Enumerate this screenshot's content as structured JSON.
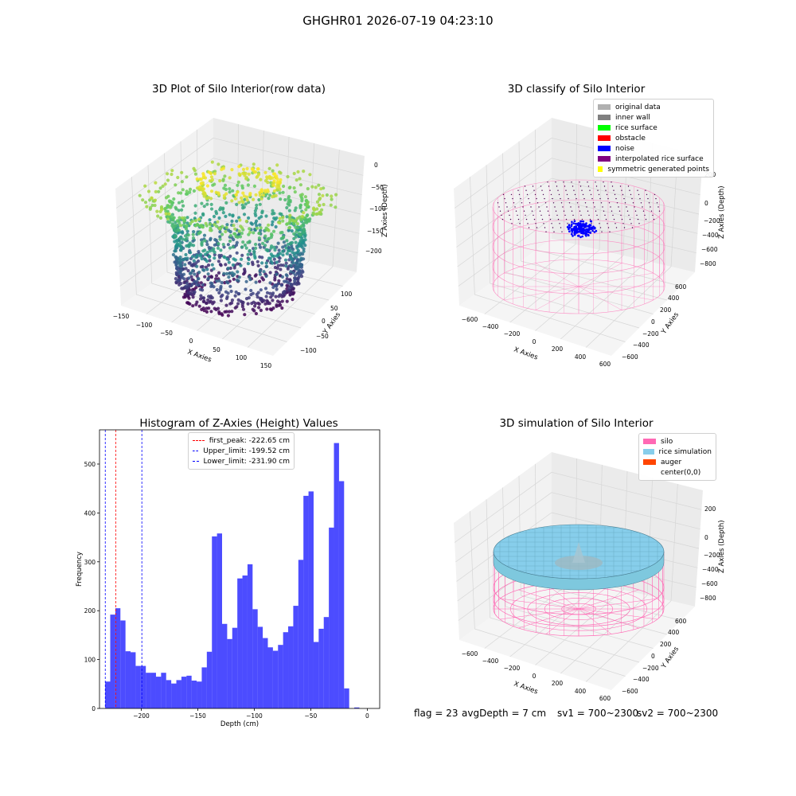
{
  "suptitle": "GHGHR01 2026-07-19 04:23:10",
  "chart_data": [
    {
      "type": "scatter",
      "title": "3D Plot of Silo Interior(row data)",
      "xlabel": "X Axies",
      "ylabel": "Y Axies",
      "zlabel": "Z Axies (Depth)",
      "x_ticks": [
        "−150",
        "−100",
        "−50",
        "0",
        "50",
        "100",
        "150"
      ],
      "y_ticks": [
        "−100",
        "−50",
        "0",
        "50",
        "100"
      ],
      "z_ticks": [
        "0",
        "−50",
        "−100",
        "−150",
        "−200"
      ],
      "xlim": [
        -150,
        150
      ],
      "ylim": [
        -100,
        120
      ],
      "zlim": [
        -230,
        0
      ],
      "colormap": "viridis",
      "description_shape": "hollow vase-like point cloud, narrow at bottom (z≈−225), widening ring at z≈−50 to −10"
    },
    {
      "type": "scatter",
      "title": "3D classify of Silo Interior",
      "xlabel": "X Axies",
      "ylabel": "Y Axies",
      "zlabel": "Z Axies (Depth)",
      "x_ticks": [
        "−600",
        "−400",
        "−200",
        "0",
        "200",
        "400",
        "600"
      ],
      "y_ticks": [
        "−600",
        "−400",
        "−200",
        "0",
        "200",
        "400",
        "600"
      ],
      "z_ticks": [
        "200",
        "0",
        "−200",
        "−400",
        "−600",
        "−800"
      ],
      "legend": [
        {
          "label": "original data",
          "color": "#b0b0b0"
        },
        {
          "label": "inner wall",
          "color": "#808080"
        },
        {
          "label": "rice surface",
          "color": "#00ff00"
        },
        {
          "label": "obstacle",
          "color": "#ff0000"
        },
        {
          "label": "noise",
          "color": "#0000ff"
        },
        {
          "label": "interpolated rice surface",
          "color": "#800080"
        },
        {
          "label": "symmetric generated points",
          "color": "#ffff00"
        }
      ]
    },
    {
      "type": "bar",
      "title": "Histogram of Z-Axies (Height) Values",
      "xlabel": "Depth (cm)",
      "ylabel": "Frequency",
      "x_ticks": [
        "−200",
        "−150",
        "−100",
        "−50",
        "0"
      ],
      "y_ticks": [
        "0",
        "100",
        "200",
        "300",
        "400",
        "500"
      ],
      "xlim": [
        -237,
        11
      ],
      "ylim": [
        0,
        570
      ],
      "bin_start": -232,
      "bin_width": 4.5,
      "values": [
        55,
        192,
        205,
        180,
        117,
        115,
        87,
        87,
        73,
        73,
        65,
        73,
        58,
        51,
        58,
        65,
        67,
        57,
        55,
        84,
        116,
        352,
        358,
        173,
        142,
        165,
        266,
        272,
        295,
        203,
        167,
        144,
        125,
        118,
        130,
        156,
        168,
        210,
        304,
        435,
        444,
        136,
        163,
        187,
        370,
        543,
        465,
        41,
        0,
        2
      ],
      "bar_color": "#0000ff",
      "vlines": [
        {
          "label": "first_peak: -222.65 cm",
          "x": -222.65,
          "color": "#ff0000"
        },
        {
          "label": "Upper_limit: -199.52 cm",
          "x": -199.52,
          "color": "#0000ff"
        },
        {
          "label": "Lower_limit: -231.90 cm",
          "x": -231.9,
          "color": "#0000ff"
        }
      ]
    },
    {
      "type": "surface",
      "title": "3D simulation of Silo Interior",
      "xlabel": "X Axies",
      "ylabel": "Y Axies",
      "zlabel": "Z Axies (Depth)",
      "x_ticks": [
        "−600",
        "−400",
        "−200",
        "0",
        "200",
        "400",
        "600"
      ],
      "y_ticks": [
        "−600",
        "−400",
        "−200",
        "0",
        "200",
        "400",
        "600"
      ],
      "z_ticks": [
        "200",
        "0",
        "−200",
        "−400",
        "−600",
        "−800"
      ],
      "legend": [
        {
          "label": "silo",
          "color": "#ff69b4"
        },
        {
          "label": "rice simulation",
          "color": "#87ceeb"
        },
        {
          "label": "auger",
          "color": "#ff4500"
        },
        {
          "label": "center(0,0)",
          "color": "#ffffff"
        }
      ]
    }
  ],
  "status": {
    "flag": "flag = 23",
    "avg_depth": "avgDepth = 7 cm",
    "sv1": "sv1 = 700~2300",
    "sv2": "sv2 = 700~2300"
  }
}
